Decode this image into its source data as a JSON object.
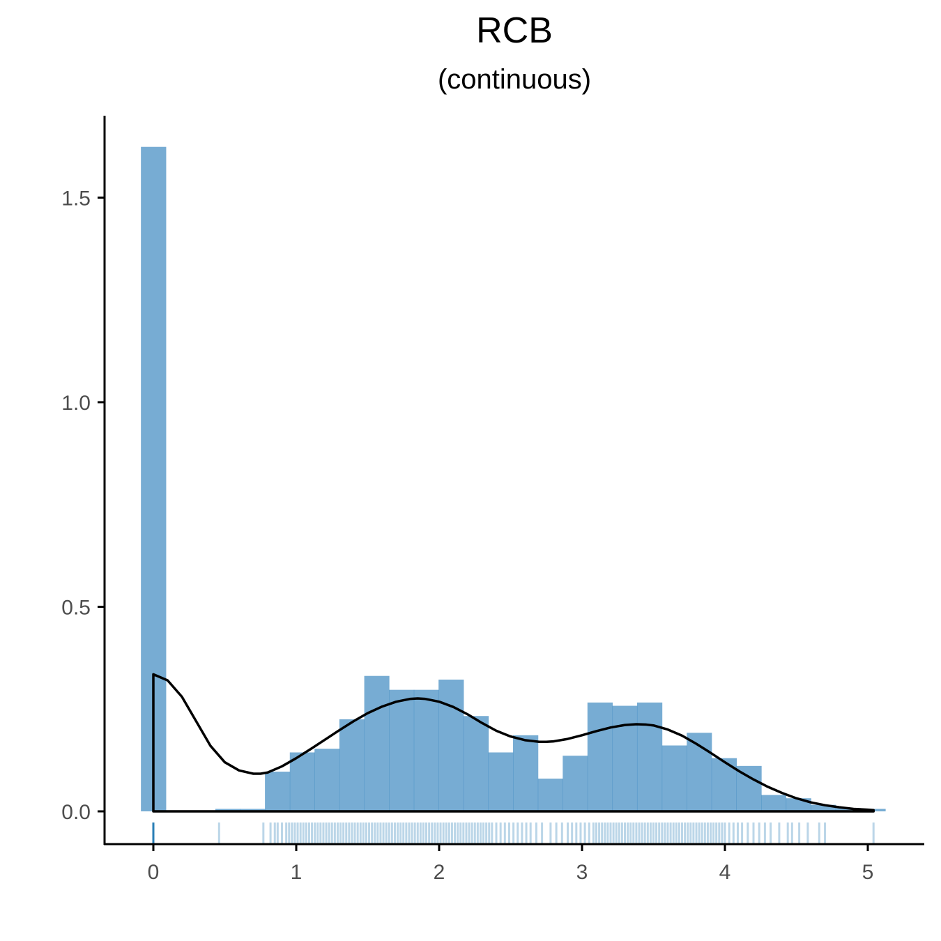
{
  "chart_data": {
    "type": "bar",
    "title": "RCB",
    "subtitle": "(continuous)",
    "xlabel": "",
    "ylabel": "",
    "xlim": [
      -0.35,
      5.35
    ],
    "ylim": [
      -0.08,
      1.68
    ],
    "x_ticks": [
      0,
      1,
      2,
      3,
      4,
      5
    ],
    "y_ticks": [
      0.0,
      0.5,
      1.0,
      1.5
    ],
    "x_tick_labels": [
      "0",
      "1",
      "2",
      "3",
      "4",
      "5"
    ],
    "y_tick_labels": [
      "0.0",
      "0.5",
      "1.0",
      "1.5"
    ],
    "grid": false,
    "bar_color": "#4a90c4",
    "curve_color": "#000000",
    "rug_color": "#1f77b4",
    "histogram": [
      {
        "x0": -0.087,
        "x1": 0.087,
        "density": 1.624
      },
      {
        "x0": 0.087,
        "x1": 0.26,
        "density": 0.0
      },
      {
        "x0": 0.26,
        "x1": 0.434,
        "density": 0.0
      },
      {
        "x0": 0.434,
        "x1": 0.607,
        "density": 0.006
      },
      {
        "x0": 0.607,
        "x1": 0.781,
        "density": 0.006
      },
      {
        "x0": 0.781,
        "x1": 0.955,
        "density": 0.097
      },
      {
        "x0": 0.955,
        "x1": 1.128,
        "density": 0.144
      },
      {
        "x0": 1.128,
        "x1": 1.302,
        "density": 0.153
      },
      {
        "x0": 1.302,
        "x1": 1.476,
        "density": 0.225
      },
      {
        "x0": 1.476,
        "x1": 1.649,
        "density": 0.331
      },
      {
        "x0": 1.649,
        "x1": 1.823,
        "density": 0.297
      },
      {
        "x0": 1.823,
        "x1": 1.996,
        "density": 0.297
      },
      {
        "x0": 1.996,
        "x1": 2.17,
        "density": 0.322
      },
      {
        "x0": 2.17,
        "x1": 2.344,
        "density": 0.233
      },
      {
        "x0": 2.344,
        "x1": 2.517,
        "density": 0.144
      },
      {
        "x0": 2.517,
        "x1": 2.691,
        "density": 0.186
      },
      {
        "x0": 2.691,
        "x1": 2.865,
        "density": 0.08
      },
      {
        "x0": 2.865,
        "x1": 3.038,
        "density": 0.136
      },
      {
        "x0": 3.038,
        "x1": 3.212,
        "density": 0.266
      },
      {
        "x0": 3.212,
        "x1": 3.385,
        "density": 0.258
      },
      {
        "x0": 3.385,
        "x1": 3.559,
        "density": 0.266
      },
      {
        "x0": 3.559,
        "x1": 3.733,
        "density": 0.161
      },
      {
        "x0": 3.733,
        "x1": 3.906,
        "density": 0.192
      },
      {
        "x0": 3.906,
        "x1": 4.08,
        "density": 0.13
      },
      {
        "x0": 4.08,
        "x1": 4.254,
        "density": 0.111
      },
      {
        "x0": 4.254,
        "x1": 4.427,
        "density": 0.04
      },
      {
        "x0": 4.427,
        "x1": 4.601,
        "density": 0.032
      },
      {
        "x0": 4.601,
        "x1": 4.774,
        "density": 0.016
      },
      {
        "x0": 4.774,
        "x1": 4.948,
        "density": 0.008
      },
      {
        "x0": 4.948,
        "x1": 5.122,
        "density": 0.006
      }
    ],
    "density_curve": {
      "x": [
        0.0,
        0.1,
        0.2,
        0.3,
        0.4,
        0.5,
        0.6,
        0.7,
        0.75,
        0.8,
        0.9,
        1.0,
        1.1,
        1.2,
        1.3,
        1.4,
        1.5,
        1.6,
        1.7,
        1.8,
        1.85,
        1.9,
        2.0,
        2.1,
        2.2,
        2.3,
        2.4,
        2.5,
        2.6,
        2.7,
        2.75,
        2.8,
        2.9,
        3.0,
        3.1,
        3.2,
        3.3,
        3.38,
        3.45,
        3.5,
        3.6,
        3.7,
        3.8,
        3.9,
        4.0,
        4.1,
        4.2,
        4.3,
        4.4,
        4.5,
        4.6,
        4.7,
        4.8,
        4.9,
        5.0,
        5.04
      ],
      "y": [
        0.335,
        0.32,
        0.28,
        0.22,
        0.16,
        0.12,
        0.1,
        0.092,
        0.092,
        0.095,
        0.11,
        0.13,
        0.152,
        0.175,
        0.198,
        0.22,
        0.24,
        0.256,
        0.268,
        0.275,
        0.276,
        0.275,
        0.268,
        0.255,
        0.237,
        0.216,
        0.197,
        0.183,
        0.174,
        0.17,
        0.17,
        0.171,
        0.177,
        0.186,
        0.196,
        0.205,
        0.211,
        0.213,
        0.212,
        0.21,
        0.2,
        0.185,
        0.165,
        0.143,
        0.12,
        0.098,
        0.078,
        0.06,
        0.045,
        0.032,
        0.022,
        0.015,
        0.01,
        0.006,
        0.004,
        0.003
      ]
    },
    "rug_x": [
      0.0,
      0.0,
      0.0,
      0.0,
      0.0,
      0.0,
      0.0,
      0.0,
      0.46,
      0.77,
      0.82,
      0.85,
      0.87,
      0.9,
      0.93,
      0.95,
      0.97,
      0.99,
      1.01,
      1.03,
      1.05,
      1.07,
      1.09,
      1.11,
      1.13,
      1.15,
      1.17,
      1.19,
      1.21,
      1.23,
      1.25,
      1.27,
      1.29,
      1.31,
      1.33,
      1.35,
      1.37,
      1.39,
      1.41,
      1.43,
      1.45,
      1.47,
      1.49,
      1.51,
      1.53,
      1.55,
      1.57,
      1.59,
      1.61,
      1.63,
      1.65,
      1.67,
      1.69,
      1.71,
      1.73,
      1.75,
      1.77,
      1.79,
      1.81,
      1.83,
      1.85,
      1.87,
      1.89,
      1.91,
      1.93,
      1.95,
      1.97,
      1.99,
      2.01,
      2.03,
      2.05,
      2.07,
      2.09,
      2.11,
      2.13,
      2.15,
      2.17,
      2.19,
      2.21,
      2.23,
      2.25,
      2.27,
      2.29,
      2.31,
      2.33,
      2.35,
      2.37,
      2.4,
      2.43,
      2.46,
      2.49,
      2.52,
      2.55,
      2.58,
      2.61,
      2.64,
      2.68,
      2.72,
      2.78,
      2.82,
      2.86,
      2.9,
      2.93,
      2.96,
      2.99,
      3.02,
      3.05,
      3.08,
      3.1,
      3.12,
      3.14,
      3.16,
      3.18,
      3.2,
      3.22,
      3.24,
      3.26,
      3.28,
      3.3,
      3.32,
      3.34,
      3.36,
      3.38,
      3.4,
      3.42,
      3.44,
      3.46,
      3.48,
      3.5,
      3.52,
      3.54,
      3.56,
      3.58,
      3.6,
      3.62,
      3.64,
      3.66,
      3.68,
      3.7,
      3.72,
      3.74,
      3.76,
      3.78,
      3.8,
      3.82,
      3.84,
      3.86,
      3.88,
      3.9,
      3.92,
      3.94,
      3.96,
      3.98,
      4.0,
      4.03,
      4.06,
      4.09,
      4.12,
      4.16,
      4.2,
      4.24,
      4.28,
      4.32,
      4.38,
      4.44,
      4.47,
      4.52,
      4.58,
      4.66,
      4.7,
      5.04
    ]
  }
}
